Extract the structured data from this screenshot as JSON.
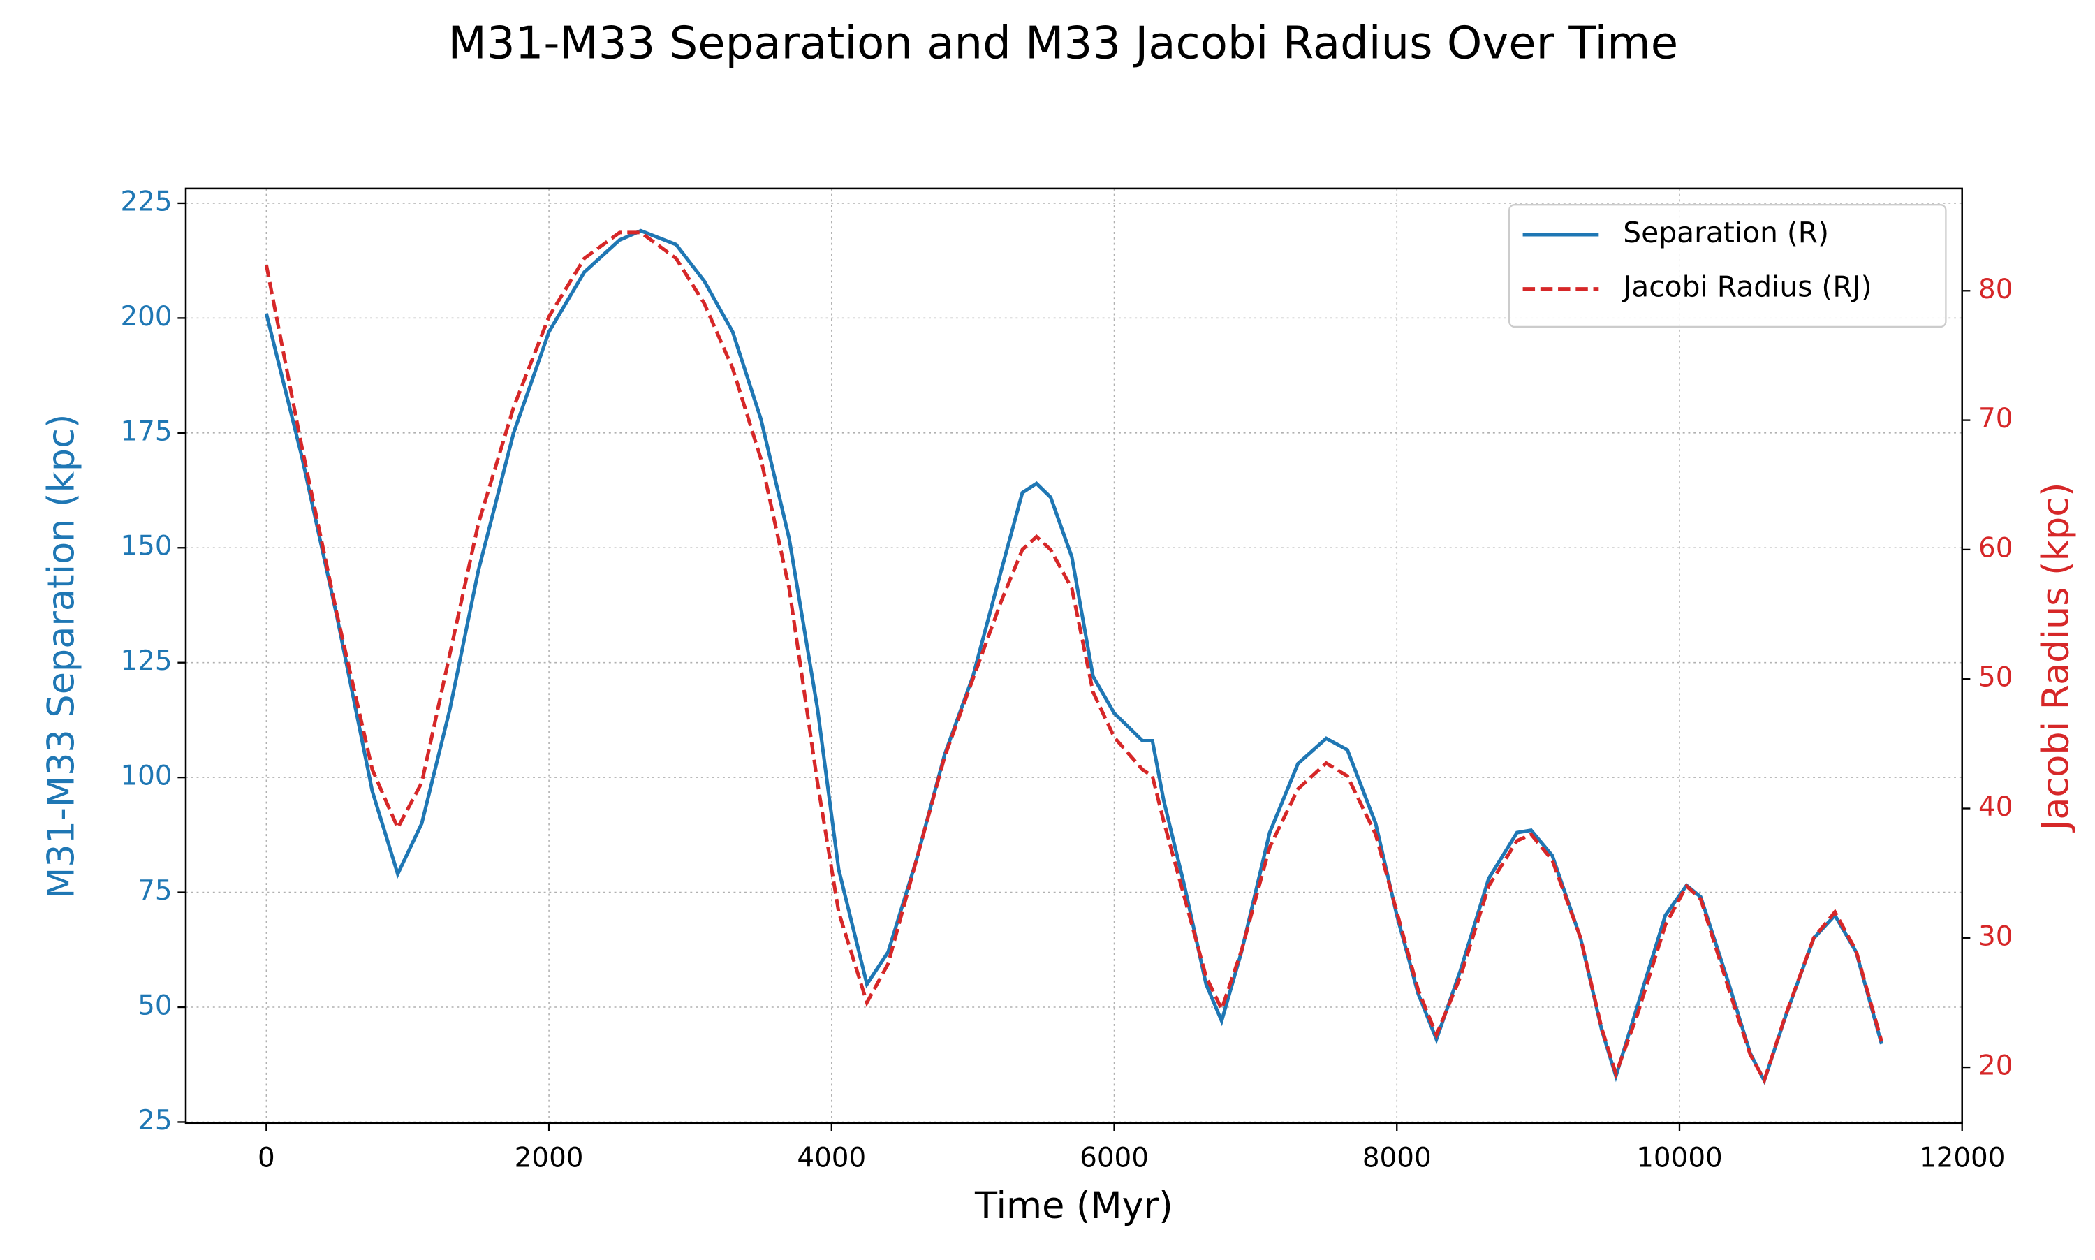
{
  "chart_data": {
    "type": "line",
    "title": "M31-M33 Separation and M33 Jacobi Radius Over Time",
    "xlabel": "Time (Myr)",
    "ylabel": "M31-M33 Separation (kpc)",
    "y2label": "Jacobi Radius (kpc)",
    "x": [
      0,
      250,
      500,
      750,
      930,
      1100,
      1300,
      1500,
      1750,
      2000,
      2250,
      2500,
      2650,
      2900,
      3100,
      3300,
      3500,
      3700,
      3900,
      4050,
      4250,
      4400,
      4600,
      4800,
      5000,
      5200,
      5350,
      5450,
      5550,
      5700,
      5850,
      6000,
      6200,
      6270,
      6350,
      6500,
      6650,
      6760,
      6900,
      7100,
      7300,
      7500,
      7650,
      7850,
      8000,
      8150,
      8280,
      8450,
      8650,
      8850,
      8950,
      9100,
      9300,
      9450,
      9550,
      9700,
      9900,
      10050,
      10150,
      10350,
      10500,
      10600,
      10750,
      10950,
      11100,
      11250,
      11430
    ],
    "series": [
      {
        "name": "Separation (R)",
        "color": "#1f77b4",
        "dash": "solid",
        "axis": "y",
        "values": [
          201,
          170,
          135,
          97,
          79,
          90,
          115,
          145,
          175,
          197,
          210,
          217,
          219,
          216,
          208,
          197,
          178,
          152,
          115,
          80,
          55,
          62,
          82,
          105,
          122,
          145,
          162,
          164,
          161,
          148,
          122,
          114,
          108,
          108,
          95,
          76,
          55,
          47,
          62,
          88,
          103,
          108.5,
          106,
          90,
          70,
          53,
          43,
          58,
          78,
          88,
          88.5,
          83,
          65,
          45,
          35,
          50,
          70,
          76.5,
          74,
          55,
          40,
          34,
          48,
          65,
          70,
          62,
          42
        ]
      },
      {
        "name": "Jacobi Radius (RJ)",
        "color": "#d62728",
        "dash": "dashed",
        "axis": "y2",
        "values": [
          82,
          68,
          55,
          43,
          38.5,
          42,
          52,
          62,
          71,
          78,
          82.5,
          84.5,
          84.5,
          82.5,
          79,
          74,
          67,
          57,
          42,
          32,
          25,
          28,
          36,
          44,
          50,
          56,
          60,
          61,
          60,
          57,
          49,
          45.5,
          43,
          42.5,
          39,
          33,
          27,
          24.5,
          29,
          37,
          41.5,
          43.5,
          42.5,
          38,
          32,
          26,
          22.5,
          27,
          34,
          37.5,
          38,
          36,
          30,
          23,
          19.5,
          24,
          31,
          34,
          33,
          26,
          21,
          19,
          24,
          30,
          32,
          29,
          22
        ]
      }
    ],
    "xlim": [
      -570,
      12000
    ],
    "xticks": [
      0,
      2000,
      4000,
      6000,
      8000,
      10000,
      12000
    ],
    "ylim": [
      24.8,
      228.2
    ],
    "yticks": [
      25,
      50,
      75,
      100,
      125,
      150,
      175,
      200,
      225
    ],
    "y2lim": [
      15.7,
      87.9
    ],
    "y2ticks": [
      20,
      30,
      40,
      50,
      60,
      70,
      80
    ],
    "grid": true,
    "legend": "upper right"
  }
}
